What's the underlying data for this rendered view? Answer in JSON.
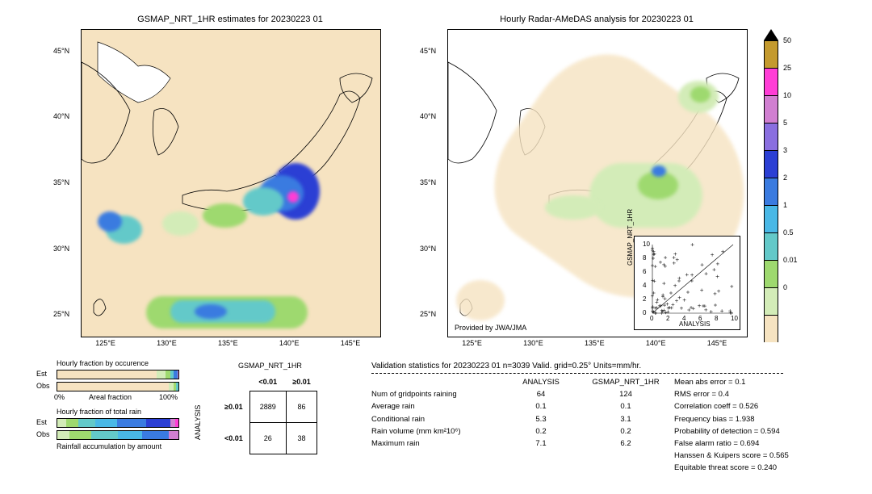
{
  "titles": {
    "left_map": "GSMAP_NRT_1HR estimates for 20230223 01",
    "right_map": "Hourly Radar-AMeDAS analysis for 20230223 01"
  },
  "map": {
    "xlim": [
      120,
      150
    ],
    "ylim": [
      22,
      48
    ],
    "xticks": [
      "125°E",
      "130°E",
      "135°E",
      "140°E",
      "145°E"
    ],
    "yticks": [
      "25°N",
      "30°N",
      "35°N",
      "40°N",
      "45°N"
    ],
    "bg_color": "#f6e3c1",
    "land_outline_color": "#000000",
    "provider": "Provided by JWA/JMA"
  },
  "colorbar": {
    "levels": [
      0,
      0.01,
      0.5,
      1,
      2,
      3,
      5,
      10,
      25,
      50
    ],
    "colors": [
      "#f6e3c1",
      "#d3ecb8",
      "#9ed96f",
      "#63c9c9",
      "#49b8e6",
      "#3a7be0",
      "#2b3fd4",
      "#8a6fe0",
      "#d17fd1",
      "#ff3dd6",
      "#c49a2e"
    ],
    "top_marker_color": "#000000"
  },
  "bars": {
    "occurrence": {
      "title": "Hourly fraction by occurence",
      "axis_left": "0%",
      "axis_right": "100%",
      "axis_label": "Areal fraction",
      "rows": {
        "Est": {
          "colors": [
            "#f6e3c1",
            "#d3ecb8",
            "#9ed96f",
            "#63c9c9",
            "#3a7be0",
            "#d17fd1"
          ],
          "fracs": [
            0.82,
            0.07,
            0.04,
            0.03,
            0.03,
            0.01
          ]
        },
        "Obs": {
          "colors": [
            "#f6e3c1",
            "#d3ecb8",
            "#9ed96f",
            "#63c9c9"
          ],
          "fracs": [
            0.92,
            0.04,
            0.02,
            0.02
          ]
        }
      }
    },
    "total_rain": {
      "title": "Hourly fraction of total rain",
      "rows": {
        "Est": {
          "colors": [
            "#d3ecb8",
            "#9ed96f",
            "#63c9c9",
            "#49b8e6",
            "#3a7be0",
            "#2b3fd4",
            "#d17fd1",
            "#ff3dd6"
          ],
          "fracs": [
            0.07,
            0.1,
            0.14,
            0.18,
            0.24,
            0.2,
            0.04,
            0.03
          ]
        },
        "Obs": {
          "colors": [
            "#d3ecb8",
            "#9ed96f",
            "#63c9c9",
            "#49b8e6",
            "#3a7be0",
            "#d17fd1"
          ],
          "fracs": [
            0.1,
            0.18,
            0.22,
            0.2,
            0.22,
            0.08
          ]
        }
      }
    },
    "accum_label": "Rainfall accumulation by amount"
  },
  "contingency": {
    "col_header": "GSMAP_NRT_1HR",
    "row_header": "ANALYSIS",
    "cols": [
      "<0.01",
      "≥0.01"
    ],
    "rows": [
      "≥0.01",
      "<0.01"
    ],
    "cells": [
      [
        "2889",
        "86"
      ],
      [
        "26",
        "38"
      ]
    ]
  },
  "validation": {
    "header": "Validation statistics for 20230223 01  n=3039 Valid. grid=0.25°  Units=mm/hr.",
    "col1": "ANALYSIS",
    "col2": "GSMAP_NRT_1HR",
    "rows": [
      {
        "label": "Num of gridpoints raining",
        "v1": "64",
        "v2": "124"
      },
      {
        "label": "Average rain",
        "v1": "0.1",
        "v2": "0.1"
      },
      {
        "label": "Conditional rain",
        "v1": "5.3",
        "v2": "3.1"
      },
      {
        "label": "Rain volume (mm km²10⁶)",
        "v1": "0.2",
        "v2": "0.2"
      },
      {
        "label": "Maximum rain",
        "v1": "7.1",
        "v2": "6.2"
      }
    ],
    "stats": [
      {
        "label": "Mean abs error =",
        "val": "0.1"
      },
      {
        "label": "RMS error =",
        "val": "0.4"
      },
      {
        "label": "Correlation coeff =",
        "val": "0.526"
      },
      {
        "label": "Frequency bias =",
        "val": "1.938"
      },
      {
        "label": "Probability of detection =",
        "val": "0.594"
      },
      {
        "label": "False alarm ratio =",
        "val": "0.694"
      },
      {
        "label": "Hanssen & Kuipers score =",
        "val": "0.565"
      },
      {
        "label": "Equitable threat score =",
        "val": "0.240"
      }
    ]
  },
  "scatter": {
    "xlabel": "ANALYSIS",
    "ylabel": "GSMAP_NRT_1HR",
    "lim": [
      0,
      10
    ],
    "ticks": [
      0,
      2,
      4,
      6,
      8,
      10
    ],
    "points_cluster_count": 80
  }
}
